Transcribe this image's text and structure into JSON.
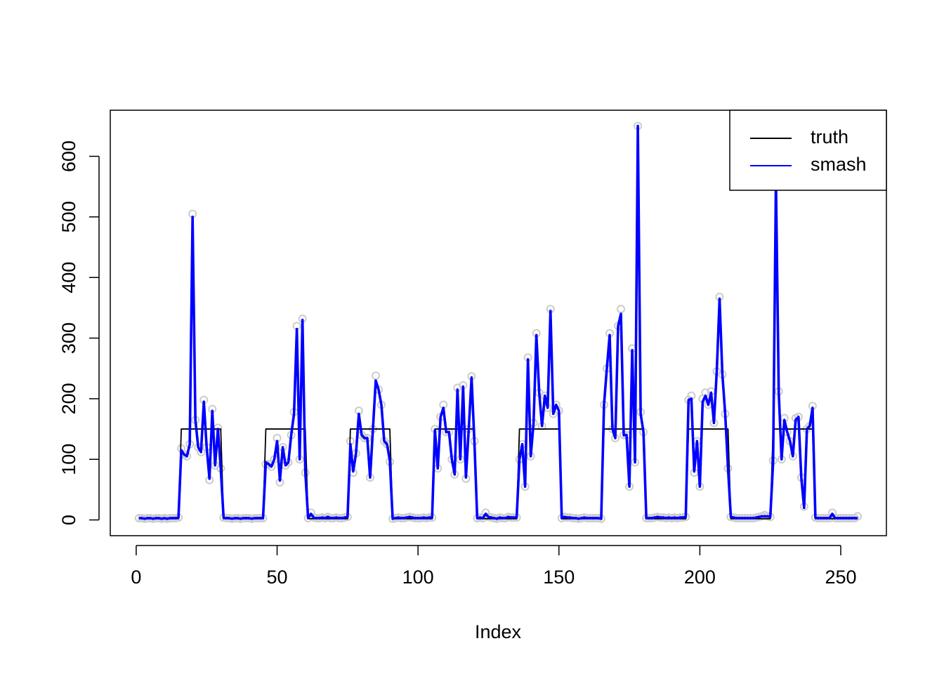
{
  "chart_data": {
    "type": "line",
    "xlabel": "Index",
    "x": [
      1,
      2,
      3,
      4,
      5,
      6,
      7,
      8,
      9,
      10,
      11,
      12,
      13,
      14,
      15,
      16,
      17,
      18,
      19,
      20,
      21,
      22,
      23,
      24,
      25,
      26,
      27,
      28,
      29,
      30,
      31,
      32,
      33,
      34,
      35,
      36,
      37,
      38,
      39,
      40,
      41,
      42,
      43,
      44,
      45,
      46,
      47,
      48,
      49,
      50,
      51,
      52,
      53,
      54,
      55,
      56,
      57,
      58,
      59,
      60,
      61,
      62,
      63,
      64,
      65,
      66,
      67,
      68,
      69,
      70,
      71,
      72,
      73,
      74,
      75,
      76,
      77,
      78,
      79,
      80,
      81,
      82,
      83,
      84,
      85,
      86,
      87,
      88,
      89,
      90,
      91,
      92,
      93,
      94,
      95,
      96,
      97,
      98,
      99,
      100,
      101,
      102,
      103,
      104,
      105,
      106,
      107,
      108,
      109,
      110,
      111,
      112,
      113,
      114,
      115,
      116,
      117,
      118,
      119,
      120,
      121,
      122,
      123,
      124,
      125,
      126,
      127,
      128,
      129,
      130,
      131,
      132,
      133,
      134,
      135,
      136,
      137,
      138,
      139,
      140,
      141,
      142,
      143,
      144,
      145,
      146,
      147,
      148,
      149,
      150,
      151,
      152,
      153,
      154,
      155,
      156,
      157,
      158,
      159,
      160,
      161,
      162,
      163,
      164,
      165,
      166,
      167,
      168,
      169,
      170,
      171,
      172,
      173,
      174,
      175,
      176,
      177,
      178,
      179,
      180,
      181,
      182,
      183,
      184,
      185,
      186,
      187,
      188,
      189,
      190,
      191,
      192,
      193,
      194,
      195,
      196,
      197,
      198,
      199,
      200,
      201,
      202,
      203,
      204,
      205,
      206,
      207,
      208,
      209,
      210,
      211,
      212,
      213,
      214,
      215,
      216,
      217,
      218,
      219,
      220,
      221,
      222,
      223,
      224,
      225,
      226,
      227,
      228,
      229,
      230,
      231,
      232,
      233,
      234,
      235,
      236,
      237,
      238,
      239,
      240,
      241,
      242,
      243,
      244,
      245,
      246,
      247,
      248,
      249,
      250,
      251,
      252,
      253,
      254,
      255,
      256
    ],
    "points": {
      "color": "#cccccc",
      "values": [
        3,
        3,
        2,
        3,
        3,
        2,
        3,
        3,
        2,
        3,
        2,
        3,
        3,
        3,
        4,
        118,
        108,
        105,
        125,
        505,
        165,
        120,
        112,
        198,
        120,
        66,
        183,
        90,
        152,
        85,
        4,
        3,
        3,
        2,
        3,
        3,
        2,
        3,
        3,
        3,
        2,
        3,
        3,
        3,
        3,
        92,
        92,
        88,
        100,
        135,
        62,
        120,
        90,
        95,
        140,
        178,
        320,
        100,
        332,
        78,
        3,
        12,
        4,
        3,
        3,
        4,
        3,
        5,
        3,
        3,
        4,
        3,
        3,
        4,
        5,
        130,
        78,
        110,
        180,
        140,
        135,
        135,
        70,
        150,
        238,
        215,
        190,
        130,
        125,
        96,
        2,
        3,
        4,
        3,
        3,
        4,
        5,
        4,
        3,
        3,
        3,
        4,
        3,
        4,
        4,
        150,
        85,
        170,
        190,
        145,
        145,
        100,
        75,
        218,
        100,
        222,
        68,
        150,
        237,
        130,
        3,
        4,
        3,
        12,
        5,
        4,
        3,
        2,
        4,
        3,
        3,
        5,
        4,
        4,
        4,
        100,
        125,
        55,
        268,
        105,
        160,
        308,
        210,
        155,
        205,
        185,
        348,
        175,
        190,
        180,
        3,
        5,
        4,
        4,
        3,
        3,
        2,
        3,
        4,
        3,
        3,
        3,
        3,
        3,
        2,
        190,
        250,
        308,
        150,
        135,
        320,
        348,
        140,
        140,
        55,
        283,
        95,
        650,
        178,
        145,
        3,
        3,
        3,
        4,
        5,
        4,
        4,
        3,
        4,
        3,
        4,
        3,
        4,
        4,
        5,
        198,
        205,
        78,
        130,
        55,
        200,
        210,
        190,
        212,
        160,
        245,
        368,
        240,
        175,
        85,
        5,
        4,
        3,
        3,
        3,
        3,
        3,
        3,
        3,
        4,
        5,
        6,
        8,
        6,
        5,
        98,
        565,
        212,
        100,
        168,
        145,
        130,
        105,
        168,
        170,
        70,
        22,
        150,
        155,
        188,
        4,
        3,
        3,
        3,
        3,
        3,
        12,
        3,
        3,
        3,
        3,
        3,
        3,
        3,
        3,
        6
      ]
    },
    "series": [
      {
        "name": "truth",
        "color": "#000000",
        "values": [
          2,
          2,
          2,
          2,
          2,
          2,
          2,
          2,
          2,
          2,
          2,
          2,
          2,
          2,
          2,
          150,
          150,
          150,
          150,
          150,
          150,
          150,
          150,
          150,
          150,
          150,
          150,
          150,
          150,
          150,
          2,
          2,
          2,
          2,
          2,
          2,
          2,
          2,
          2,
          2,
          2,
          2,
          2,
          2,
          2,
          150,
          150,
          150,
          150,
          150,
          150,
          150,
          150,
          150,
          150,
          150,
          150,
          150,
          150,
          150,
          2,
          2,
          2,
          2,
          2,
          2,
          2,
          2,
          2,
          2,
          2,
          2,
          2,
          2,
          2,
          150,
          150,
          150,
          150,
          150,
          150,
          150,
          150,
          150,
          150,
          150,
          150,
          150,
          150,
          150,
          2,
          2,
          2,
          2,
          2,
          2,
          2,
          2,
          2,
          2,
          2,
          2,
          2,
          2,
          2,
          150,
          150,
          150,
          150,
          150,
          150,
          150,
          150,
          150,
          150,
          150,
          150,
          150,
          150,
          150,
          2,
          2,
          2,
          2,
          2,
          2,
          2,
          2,
          2,
          2,
          2,
          2,
          2,
          2,
          2,
          150,
          150,
          150,
          150,
          150,
          150,
          150,
          150,
          150,
          150,
          150,
          150,
          150,
          150,
          150,
          2,
          2,
          2,
          2,
          2,
          2,
          2,
          2,
          2,
          2,
          2,
          2,
          2,
          2,
          2,
          150,
          150,
          150,
          150,
          150,
          150,
          150,
          150,
          150,
          150,
          150,
          150,
          150,
          150,
          150,
          2,
          2,
          2,
          2,
          2,
          2,
          2,
          2,
          2,
          2,
          2,
          2,
          2,
          2,
          2,
          150,
          150,
          150,
          150,
          150,
          150,
          150,
          150,
          150,
          150,
          150,
          150,
          150,
          150,
          150,
          2,
          2,
          2,
          2,
          2,
          2,
          2,
          2,
          2,
          2,
          2,
          2,
          2,
          2,
          2,
          150,
          150,
          150,
          150,
          150,
          150,
          150,
          150,
          150,
          150,
          150,
          150,
          150,
          150,
          150,
          2,
          2,
          2,
          2,
          2,
          2,
          2,
          2,
          2,
          2,
          2,
          2,
          2,
          2,
          2,
          2
        ]
      },
      {
        "name": "smash",
        "color": "#0000ff",
        "values": [
          3,
          3,
          2,
          3,
          3,
          2,
          3,
          3,
          2,
          3,
          2,
          3,
          3,
          3,
          4,
          115,
          108,
          105,
          125,
          500,
          165,
          120,
          112,
          195,
          120,
          68,
          180,
          90,
          150,
          85,
          4,
          3,
          3,
          2,
          3,
          3,
          2,
          3,
          3,
          3,
          2,
          3,
          3,
          3,
          3,
          95,
          92,
          88,
          100,
          130,
          65,
          120,
          90,
          95,
          140,
          175,
          315,
          100,
          330,
          80,
          3,
          10,
          4,
          3,
          3,
          4,
          3,
          5,
          3,
          3,
          4,
          3,
          3,
          4,
          5,
          125,
          80,
          110,
          175,
          140,
          135,
          135,
          70,
          150,
          230,
          215,
          190,
          130,
          125,
          98,
          2,
          3,
          4,
          3,
          3,
          4,
          5,
          4,
          3,
          3,
          3,
          4,
          3,
          4,
          4,
          148,
          85,
          170,
          185,
          145,
          145,
          100,
          75,
          215,
          100,
          220,
          70,
          150,
          235,
          130,
          3,
          4,
          3,
          10,
          5,
          4,
          3,
          2,
          4,
          3,
          3,
          5,
          4,
          4,
          4,
          100,
          125,
          55,
          265,
          105,
          160,
          305,
          210,
          155,
          205,
          185,
          345,
          175,
          190,
          180,
          3,
          5,
          4,
          4,
          3,
          3,
          2,
          3,
          4,
          3,
          3,
          3,
          3,
          3,
          2,
          190,
          250,
          305,
          150,
          135,
          320,
          340,
          140,
          140,
          55,
          280,
          95,
          650,
          175,
          145,
          3,
          3,
          3,
          4,
          5,
          4,
          4,
          3,
          4,
          3,
          4,
          3,
          4,
          4,
          5,
          198,
          200,
          80,
          130,
          55,
          195,
          205,
          190,
          210,
          160,
          245,
          365,
          240,
          175,
          85,
          5,
          4,
          3,
          3,
          3,
          3,
          3,
          3,
          3,
          4,
          5,
          6,
          6,
          6,
          5,
          95,
          560,
          210,
          100,
          165,
          145,
          130,
          105,
          165,
          170,
          70,
          20,
          150,
          155,
          185,
          4,
          3,
          3,
          3,
          3,
          3,
          10,
          3,
          3,
          3,
          3,
          3,
          3,
          3,
          3,
          3
        ]
      }
    ],
    "xlim": [
      -9.2,
      266.2
    ],
    "ylim": [
      -26,
      676
    ],
    "xticks": [
      0,
      50,
      100,
      150,
      200,
      250
    ],
    "yticks": [
      0,
      100,
      200,
      300,
      400,
      500,
      600
    ],
    "legend": "top-right"
  }
}
